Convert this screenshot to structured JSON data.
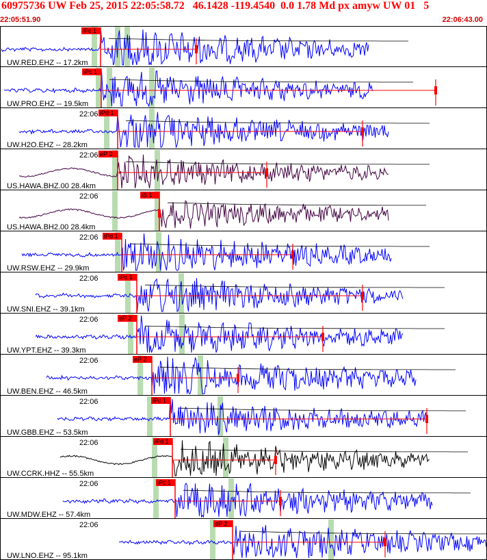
{
  "header": {
    "title": "60975736 UW Feb 25, 2015 22:05:58.72   46.1428 -119.4540  0.0 1.78 Md px amyw UW 01   5",
    "time_start": "22:05:51.90",
    "time_end": "22:06:43.00"
  },
  "colors": {
    "pick": "#ff0000",
    "trace_blue": "#0000ff",
    "trace_dark": "#400040",
    "trace_black": "#000000",
    "theoretical_band": "#b8dcb0",
    "border": "#000000"
  },
  "traces": [
    {
      "label": "UW.RED.EHZ -- 17.2km",
      "time": "",
      "pick": "iPc 1",
      "color": "blue"
    },
    {
      "label": "UW.PRO.EHZ -- 19.5km",
      "time": "",
      "pick": "iPc 1",
      "color": "blue"
    },
    {
      "label": "UW.H2O.EHZ -- 28.2km",
      "time": "22:06",
      "pick": "iPd 1",
      "color": "blue"
    },
    {
      "label": "US.HAWA.BHZ.00 28.4km",
      "time": "22:06",
      "pick": "eP 2",
      "color": "dark"
    },
    {
      "label": "US.HAWA.BH2.00 28.4km",
      "time": "22:06",
      "pick": "iS 1",
      "color": "dark"
    },
    {
      "label": "UW.RSW.EHZ -- 29.9km",
      "time": "22:06",
      "pick": "iPd 1",
      "color": "blue"
    },
    {
      "label": "UW.SNI.EHZ -- 39.1km",
      "time": "22:06",
      "pick": "iPc 1",
      "color": "blue"
    },
    {
      "label": "UW.YPT.EHZ -- 39.3km",
      "time": "22:06",
      "pick": "eP 2",
      "color": "blue"
    },
    {
      "label": "UW.BEN.EHZ -- 46.5km",
      "time": "22:06",
      "pick": "eP 2",
      "color": "blue"
    },
    {
      "label": "UW.GBB.EHZ -- 53.5km",
      "time": "22:06",
      "pick": "iPc 1",
      "color": "blue"
    },
    {
      "label": "UW.CCRK.HHZ -- 55.5km",
      "time": "22:06",
      "pick": "iPd 1",
      "color": "black"
    },
    {
      "label": "UW.MDW.EHZ -- 57.4km",
      "time": "22:06",
      "pick": "iPc 1",
      "color": "blue"
    },
    {
      "label": "UW.LNO.EHZ -- 95.1km",
      "time": "22:06",
      "pick": "eP 2",
      "color": "blue"
    }
  ]
}
